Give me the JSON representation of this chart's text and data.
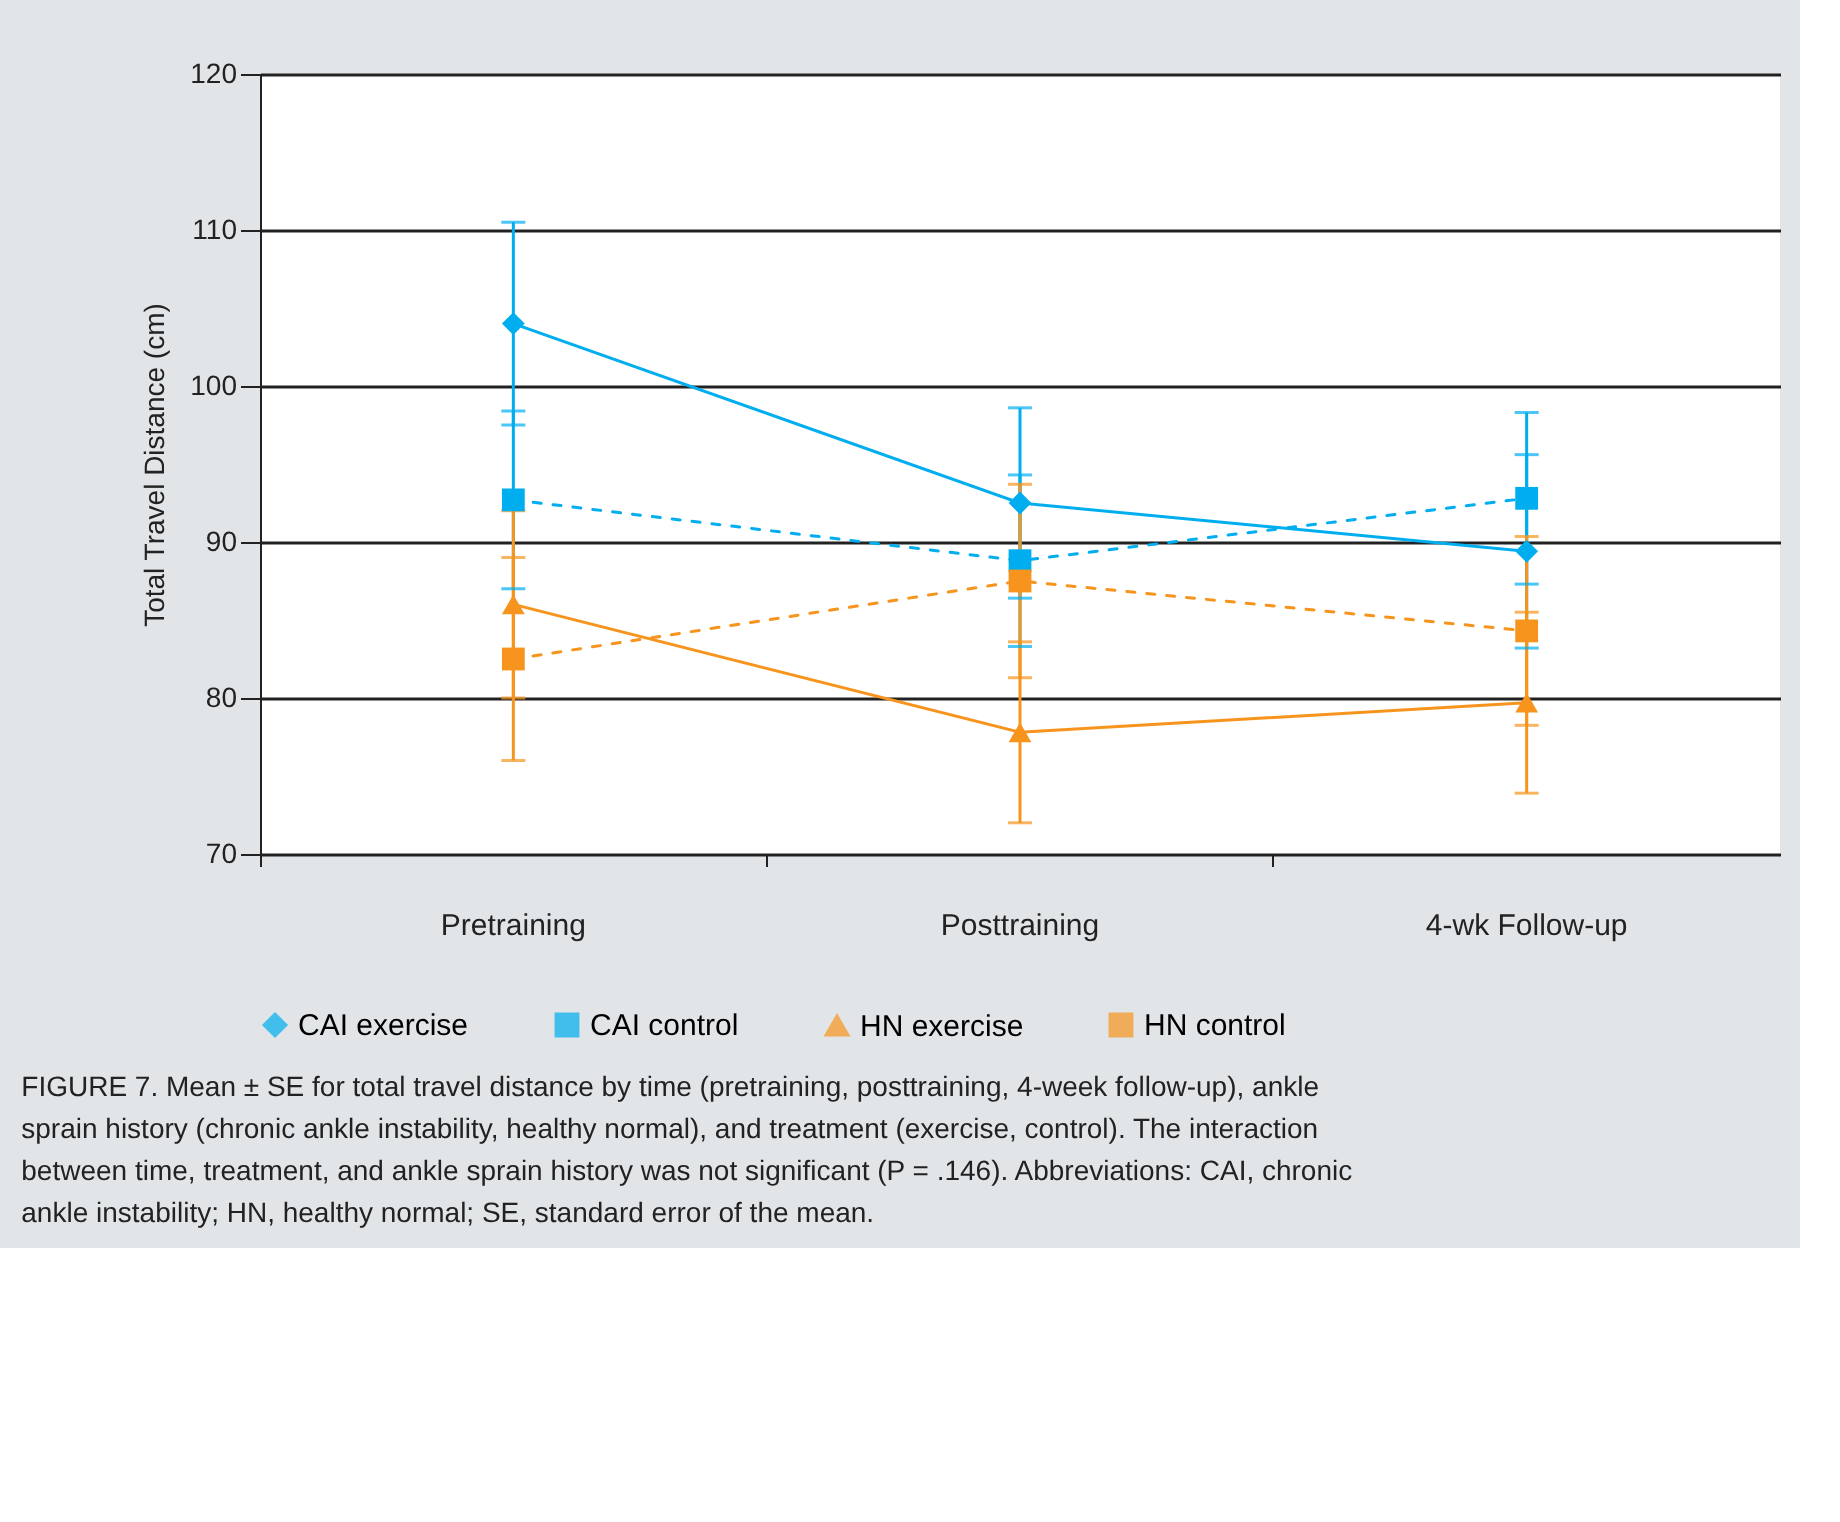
{
  "chart_data": {
    "type": "line",
    "ylabel": "Total Travel Distance (cm)",
    "categories": [
      "Pretraining",
      "Posttraining",
      "4-wk Follow-up"
    ],
    "ylim": [
      70,
      120
    ],
    "yticks": [
      70,
      80,
      90,
      100,
      110,
      120
    ],
    "grid": "y",
    "legend": "bottom",
    "series": [
      {
        "name": "CAI exercise",
        "color": "#00aeef",
        "marker": "diamond",
        "line_style": "solid",
        "values": [
          104,
          92.5,
          89.4
        ],
        "errors": [
          6.5,
          6.1,
          6.2
        ]
      },
      {
        "name": "CAI control",
        "color": "#00aeef",
        "marker": "square",
        "line_style": "dashed",
        "values": [
          92.7,
          88.8,
          92.8
        ],
        "errors": [
          5.7,
          5.5,
          5.5
        ]
      },
      {
        "name": "HN exercise",
        "color": "#f7941d",
        "marker": "triangle",
        "line_style": "solid",
        "values": [
          86,
          77.8,
          79.7
        ],
        "errors": [
          6,
          5.8,
          5.8
        ]
      },
      {
        "name": "HN control",
        "color": "#f7941d",
        "marker": "square",
        "line_style": "dashed",
        "values": [
          82.5,
          87.5,
          84.3
        ],
        "errors": [
          6.5,
          6.2,
          6.05
        ]
      }
    ],
    "annotations": [
      "FIGURE 7. Mean ± SE for total travel distance by time (pretraining, posttraining, 4-week follow-up), ankle sprain history (chronic ankle instability, healthy normal), and treatment (exercise, control). The interaction between time, treatment, and ankle sprain history was not significant (P = .146). Abbreviations: CAI, chronic ankle instability; HN, healthy normal; SE, standard error of the mean."
    ]
  }
}
